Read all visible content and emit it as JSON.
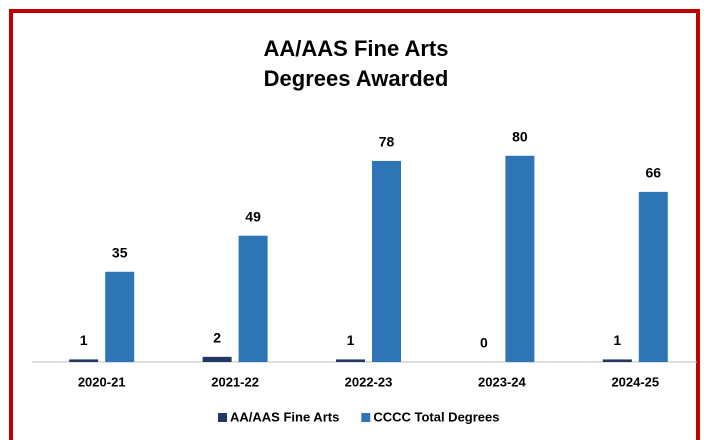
{
  "chart_data": {
    "type": "bar",
    "title": [
      "AA/AAS Fine Arts",
      "Degrees Awarded"
    ],
    "categories": [
      "2020-21",
      "2021-22",
      "2022-23",
      "2023-24",
      "2024-25"
    ],
    "series": [
      {
        "name": "AA/AAS Fine Arts",
        "color": "#1f3864",
        "values": [
          1,
          2,
          1,
          0,
          1
        ]
      },
      {
        "name": "CCCC Total Degrees",
        "color": "#2e75b6",
        "values": [
          35,
          49,
          78,
          80,
          66
        ]
      }
    ],
    "ylim": [
      0,
      90
    ],
    "legend": "bottom"
  }
}
